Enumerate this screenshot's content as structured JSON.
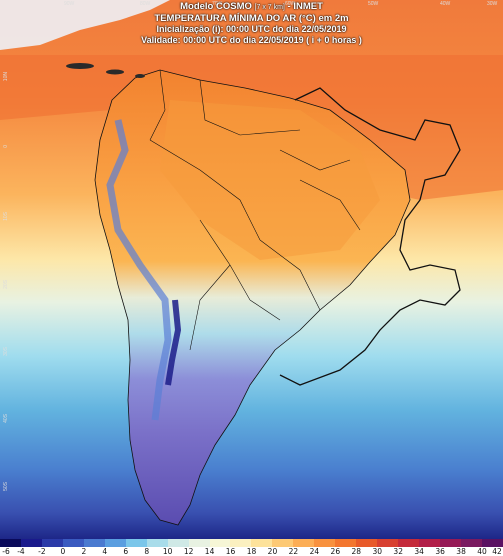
{
  "header": {
    "line1": "Modelo COSMO",
    "line1_res": "[7 x 7 km]",
    "line1_suffix": "- INMET",
    "line2": "TEMPERATURA MÍNIMA DO AR (°C) em 2m",
    "line3": "Inicialização (i): 00:00 UTC do dia 22/05/2019",
    "line4": "Validade: 00:00 UTC do dia 22/05/2019 ( i + 0 horas )"
  },
  "colorbar": {
    "ticks": [
      "-6",
      "-4",
      "-2",
      "0",
      "2",
      "4",
      "6",
      "8",
      "10",
      "12",
      "14",
      "16",
      "18",
      "20",
      "22",
      "24",
      "26",
      "28",
      "30",
      "32",
      "34",
      "36",
      "38",
      "40",
      "42"
    ],
    "colors": [
      "#0a0a5a",
      "#1a1a8c",
      "#2b3aa8",
      "#3a5ac0",
      "#4a7ad0",
      "#5a9ee0",
      "#7ac6ea",
      "#a8dcea",
      "#cfe9e6",
      "#e8f2e2",
      "#f6f6d6",
      "#fbf0c0",
      "#fde29a",
      "#fdc974",
      "#fcad55",
      "#f8913e",
      "#f3762f",
      "#e85a2a",
      "#d84030",
      "#c42a3a",
      "#b21e48",
      "#961a56",
      "#7a1a60",
      "#5a1262"
    ]
  },
  "axes": {
    "lat_labels": [
      "10N",
      "0",
      "10S",
      "20S",
      "30S",
      "40S",
      "50S"
    ],
    "lon_labels": [
      "90W",
      "80W",
      "70W",
      "60W",
      "50W",
      "40W",
      "30W"
    ]
  }
}
